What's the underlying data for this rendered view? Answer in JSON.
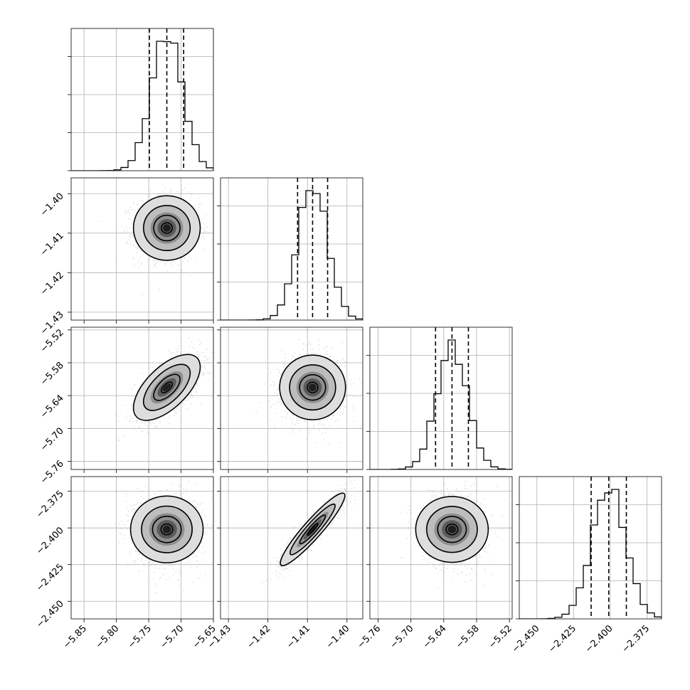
{
  "chart_data": {
    "type": "corner",
    "title": "",
    "grid": true,
    "parameters": [
      {
        "range": [
          -5.87,
          -5.65
        ],
        "median": -5.722,
        "q16": -5.749,
        "q84": -5.696,
        "sigma": 0.024,
        "ticks": [
          "−5.85",
          "−5.80",
          "−5.75",
          "−5.70",
          "−5.65"
        ],
        "tick_values": [
          -5.85,
          -5.8,
          -5.75,
          -5.7,
          -5.65
        ]
      },
      {
        "range": [
          -1.432,
          -1.396
        ],
        "median": -1.4087,
        "q16": -1.4125,
        "q84": -1.4049,
        "sigma": 0.0038,
        "ticks": [
          "−1.43",
          "−1.42",
          "−1.41",
          "−1.40"
        ],
        "tick_values": [
          -1.43,
          -1.42,
          -1.41,
          -1.4
        ]
      },
      {
        "range": [
          -5.775,
          -5.515
        ],
        "median": -5.625,
        "q16": -5.655,
        "q84": -5.595,
        "sigma": 0.028,
        "ticks": [
          "−5.76",
          "−5.70",
          "−5.64",
          "−5.58",
          "−5.52"
        ],
        "tick_values": [
          -5.76,
          -5.7,
          -5.64,
          -5.58,
          -5.52
        ]
      },
      {
        "range": [
          -2.462,
          -2.365
        ],
        "median": -2.401,
        "q16": -2.413,
        "q84": -2.389,
        "sigma": 0.0115,
        "ticks": [
          "−2.450",
          "−2.425",
          "−2.400",
          "−2.375"
        ],
        "tick_values": [
          -2.45,
          -2.425,
          -2.4,
          -2.375
        ]
      }
    ],
    "correlations": [
      {
        "pair": [
          1,
          0
        ],
        "rho": 0.0
      },
      {
        "pair": [
          2,
          0
        ],
        "rho": 0.62
      },
      {
        "pair": [
          2,
          1
        ],
        "rho": 0.0
      },
      {
        "pair": [
          3,
          0
        ],
        "rho": 0.0
      },
      {
        "pair": [
          3,
          1
        ],
        "rho": 0.93
      },
      {
        "pair": [
          3,
          2
        ],
        "rho": 0.0
      }
    ]
  }
}
